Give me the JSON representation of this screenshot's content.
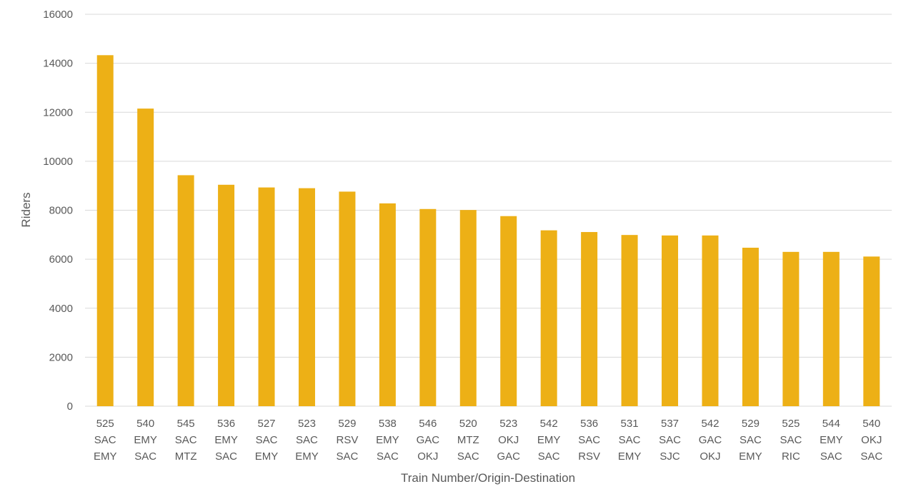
{
  "chart_data": {
    "type": "bar",
    "title": "",
    "xlabel": "Train Number/Origin-Destination",
    "ylabel": "Riders",
    "ylim": [
      0,
      16000
    ],
    "yticks": [
      0,
      2000,
      4000,
      6000,
      8000,
      10000,
      12000,
      14000,
      16000
    ],
    "grid": true,
    "legend": "none",
    "bar_color": "#EDB016",
    "categories": [
      [
        "525",
        "SAC",
        "EMY"
      ],
      [
        "540",
        "EMY",
        "SAC"
      ],
      [
        "545",
        "SAC",
        "MTZ"
      ],
      [
        "536",
        "EMY",
        "SAC"
      ],
      [
        "527",
        "SAC",
        "EMY"
      ],
      [
        "523",
        "SAC",
        "EMY"
      ],
      [
        "529",
        "RSV",
        "SAC"
      ],
      [
        "538",
        "EMY",
        "SAC"
      ],
      [
        "546",
        "GAC",
        "OKJ"
      ],
      [
        "520",
        "MTZ",
        "SAC"
      ],
      [
        "523",
        "OKJ",
        "GAC"
      ],
      [
        "542",
        "EMY",
        "SAC"
      ],
      [
        "536",
        "SAC",
        "RSV"
      ],
      [
        "531",
        "SAC",
        "EMY"
      ],
      [
        "537",
        "SAC",
        "SJC"
      ],
      [
        "542",
        "GAC",
        "OKJ"
      ],
      [
        "529",
        "SAC",
        "EMY"
      ],
      [
        "525",
        "SAC",
        "RIC"
      ],
      [
        "544",
        "EMY",
        "SAC"
      ],
      [
        "540",
        "OKJ",
        "SAC"
      ]
    ],
    "values": [
      14330,
      12150,
      9430,
      9040,
      8930,
      8900,
      8760,
      8280,
      8050,
      8010,
      7760,
      7180,
      7110,
      6990,
      6970,
      6970,
      6470,
      6300,
      6300,
      6110
    ]
  }
}
